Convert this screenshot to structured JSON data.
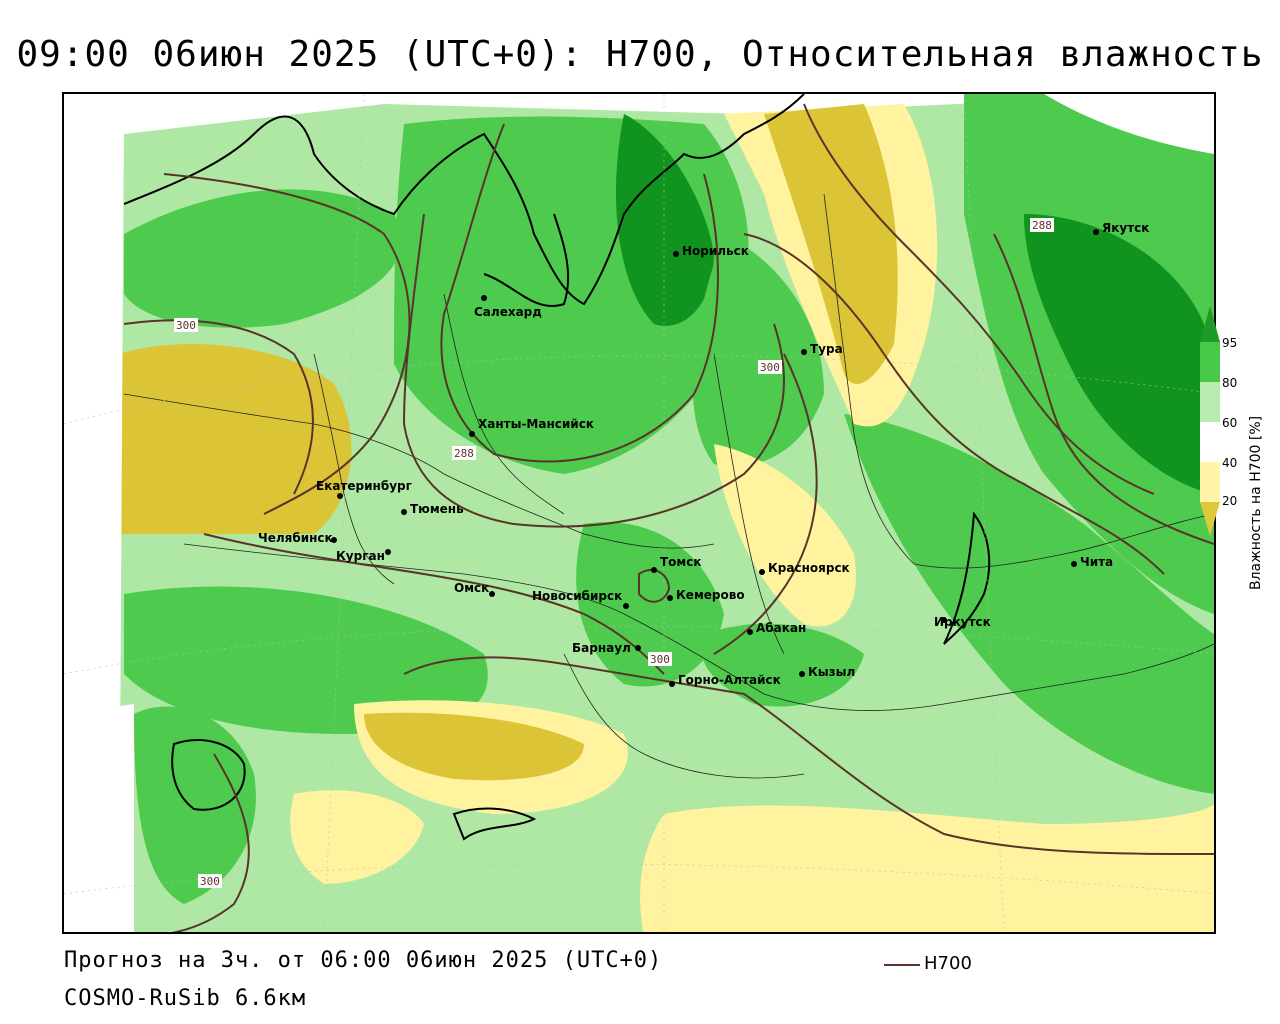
{
  "title": "09:00 06июн 2025 (UTC+0): H700, Относительная влажность",
  "footer": {
    "forecast": "Прогноз на 3ч. от 06:00 06июн 2025 (UTC+0)",
    "model": "COSMO-RuSib 6.6км",
    "legend_line_label": "H700"
  },
  "colorbar": {
    "title": "Влажность на H700 [%]",
    "ticks": [
      "95",
      "80",
      "60",
      "40",
      "20"
    ],
    "colors": [
      "#1f9a2a",
      "#49c94a",
      "#b8ebb0",
      "#fff5a8",
      "#e0c83a"
    ]
  },
  "colors": {
    "isoline": "#5a3428",
    "very_wet": "#11941f",
    "wet": "#4ecb4e",
    "moist": "#aee8a4",
    "dry": "#fff3a0",
    "very_dry": "#dcc437"
  },
  "cities": [
    {
      "name": "Салехард"
    },
    {
      "name": "Норильск"
    },
    {
      "name": "Якутск"
    },
    {
      "name": "Тура"
    },
    {
      "name": "Ханты-Мансийск"
    },
    {
      "name": "Екатеринбург"
    },
    {
      "name": "Тюмень"
    },
    {
      "name": "Челябинск"
    },
    {
      "name": "Курган"
    },
    {
      "name": "Омск"
    },
    {
      "name": "Новосибирск"
    },
    {
      "name": "Томск"
    },
    {
      "name": "Кемерово"
    },
    {
      "name": "Красноярск"
    },
    {
      "name": "Барнаул"
    },
    {
      "name": "Абакан"
    },
    {
      "name": "Горно-Алтайск"
    },
    {
      "name": "Кызыл"
    },
    {
      "name": "Иркутск"
    },
    {
      "name": "Чита"
    }
  ],
  "isoline_labels": [
    "300",
    "288",
    "300",
    "288",
    "300",
    "300"
  ]
}
